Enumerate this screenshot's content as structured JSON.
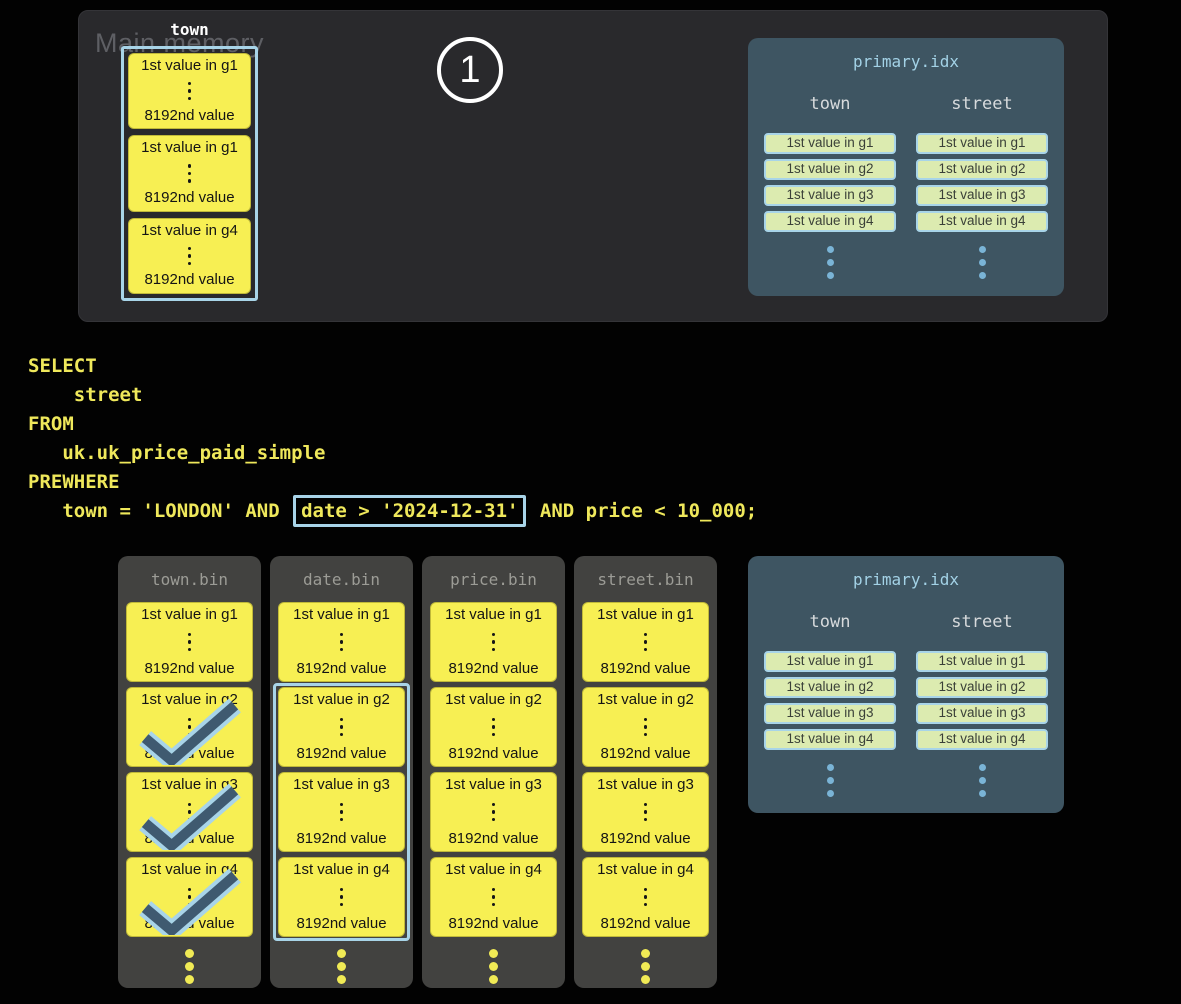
{
  "colors": {
    "accent": "#a8d4e8",
    "block-yellow": "#f7ef53",
    "idx-entry-green": "#dcebb0",
    "check-dark": "#3f5a70",
    "sql-yellow": "#efe85b",
    "memory-panel-bg": "#29292c",
    "bin-panel-bg": "#424240",
    "idx-panel-bg": "#3e5562"
  },
  "step_badge": "1",
  "main_memory": {
    "label": "Main memory",
    "column_label": "town",
    "blocks": [
      {
        "top": "1st value in g1",
        "bottom": "8192nd value",
        "checked": false
      },
      {
        "top": "1st value in g1",
        "bottom": "8192nd value",
        "checked": false
      },
      {
        "top": "1st value in g4",
        "bottom": "8192nd value",
        "checked": false
      }
    ]
  },
  "primary_idx": {
    "title": "primary.idx",
    "columns": [
      {
        "header": "town",
        "entries": [
          "1st value in g1",
          "1st value in g2",
          "1st value in g3",
          "1st value in g4"
        ]
      },
      {
        "header": "street",
        "entries": [
          "1st value in g1",
          "1st value in g2",
          "1st value in g3",
          "1st value in g4"
        ]
      }
    ]
  },
  "sql": {
    "head": "SELECT\n    street\nFROM\n   uk.uk_price_paid_simple\nPREWHERE\n   town = 'LONDON' AND ",
    "highlighted": "date > '2024-12-31'",
    "tail": " AND price < 10_000;"
  },
  "bins": [
    {
      "title": "town.bin",
      "highlight_from": 0,
      "highlight_to": 0,
      "blocks": [
        {
          "top": "1st value in g1",
          "bottom": "8192nd value",
          "checked": false
        },
        {
          "top": "1st value in g2",
          "bottom": "8192nd value",
          "checked": true
        },
        {
          "top": "1st value in g3",
          "bottom": "8192nd value",
          "checked": true
        },
        {
          "top": "1st value in g4",
          "bottom": "8192nd value",
          "checked": true
        }
      ]
    },
    {
      "title": "date.bin",
      "highlight_from": 2,
      "highlight_to": 4,
      "blocks": [
        {
          "top": "1st value in g1",
          "bottom": "8192nd value",
          "checked": false
        },
        {
          "top": "1st value in g2",
          "bottom": "8192nd value",
          "checked": false
        },
        {
          "top": "1st value in g3",
          "bottom": "8192nd value",
          "checked": false
        },
        {
          "top": "1st value in g4",
          "bottom": "8192nd value",
          "checked": false
        }
      ]
    },
    {
      "title": "price.bin",
      "highlight_from": 0,
      "highlight_to": 0,
      "blocks": [
        {
          "top": "1st value in g1",
          "bottom": "8192nd value",
          "checked": false
        },
        {
          "top": "1st value in g2",
          "bottom": "8192nd value",
          "checked": false
        },
        {
          "top": "1st value in g3",
          "bottom": "8192nd value",
          "checked": false
        },
        {
          "top": "1st value in g4",
          "bottom": "8192nd value",
          "checked": false
        }
      ]
    },
    {
      "title": "street.bin",
      "highlight_from": 0,
      "highlight_to": 0,
      "blocks": [
        {
          "top": "1st value in g1",
          "bottom": "8192nd value",
          "checked": false
        },
        {
          "top": "1st value in g2",
          "bottom": "8192nd value",
          "checked": false
        },
        {
          "top": "1st value in g3",
          "bottom": "8192nd value",
          "checked": false
        },
        {
          "top": "1st value in g4",
          "bottom": "8192nd value",
          "checked": false
        }
      ]
    }
  ]
}
